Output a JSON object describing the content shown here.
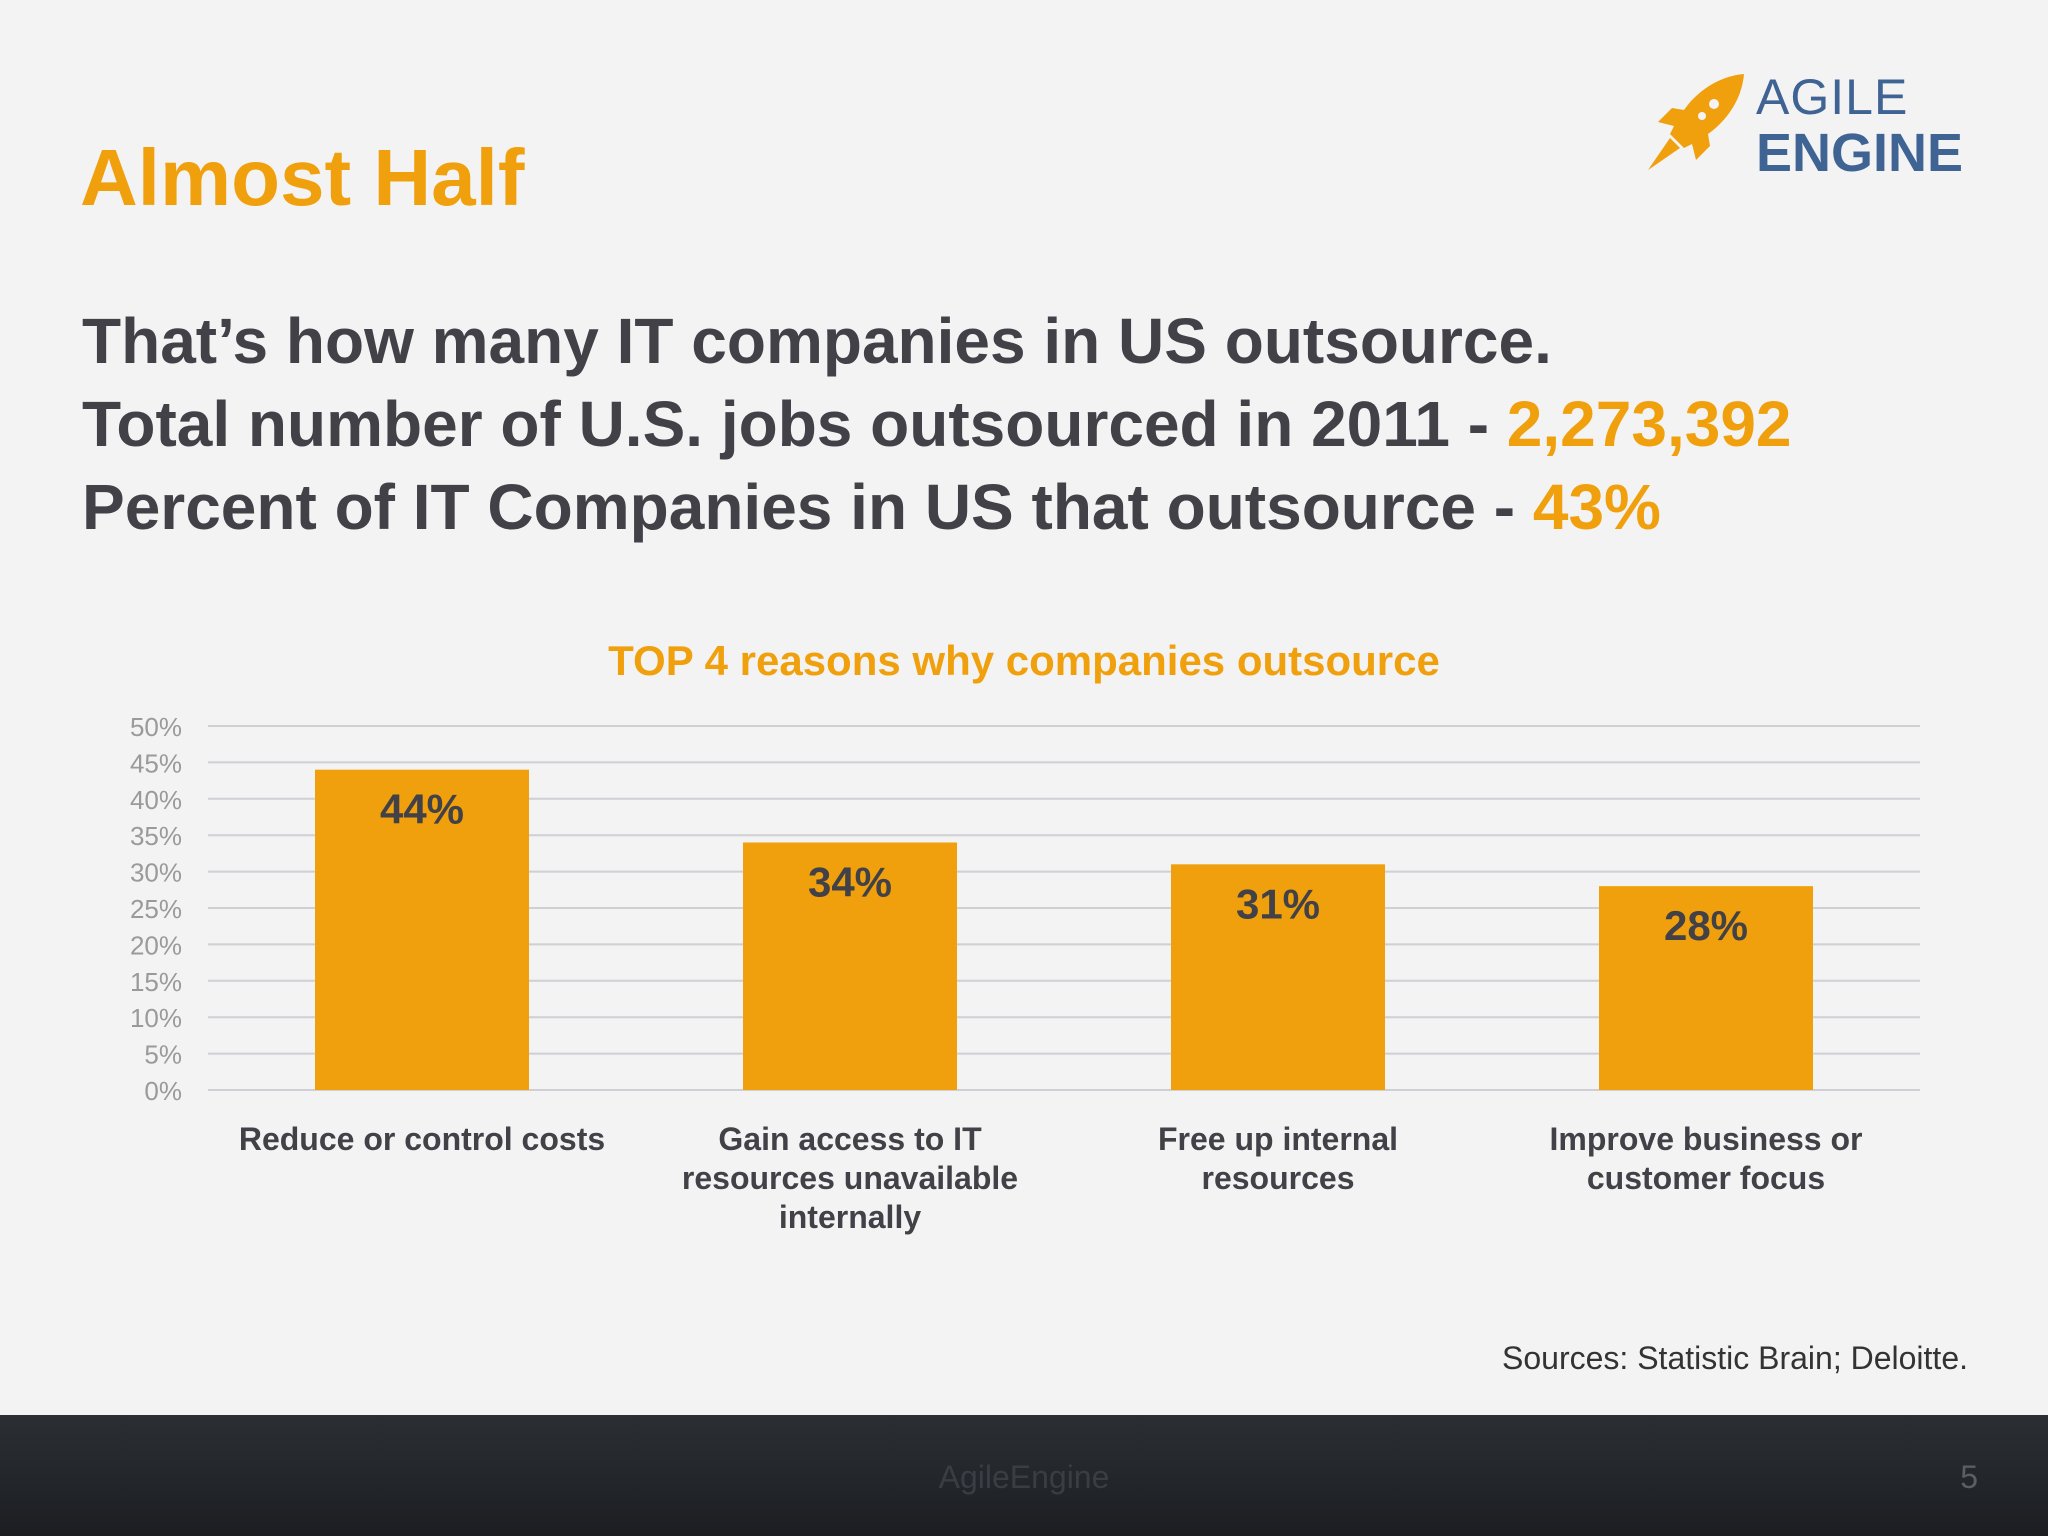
{
  "slide": {
    "title": "Almost Half",
    "stats": [
      {
        "text": "That’s how many IT companies in US outsource.",
        "highlight": ""
      },
      {
        "text": "Total number of U.S. jobs outsourced in 2011 - ",
        "highlight": "2,273,392"
      },
      {
        "text": "Percent of IT Companies in US that outsource - ",
        "highlight": "43%"
      }
    ],
    "source": "Sources: Statistic Brain; Deloitte.",
    "footer_brand": "AgileEngine",
    "page_number": "5"
  },
  "logo": {
    "line1": "AGILE",
    "line2": "ENGINE",
    "icon": "rocket-icon"
  },
  "colors": {
    "accent": "#f0a00c",
    "text": "#414147",
    "logo_blue": "#3f6494",
    "axis_text": "#9a9a9a",
    "grid": "#cfcfd4"
  },
  "chart_data": {
    "type": "bar",
    "title": "TOP 4 reasons why companies outsource",
    "categories": [
      [
        "Reduce or control costs"
      ],
      [
        "Gain access to IT",
        "resources unavailable",
        "internally"
      ],
      [
        "Free up internal",
        "resources"
      ],
      [
        "Improve business or",
        "customer focus"
      ]
    ],
    "values": [
      44,
      34,
      31,
      28
    ],
    "data_labels": [
      "44%",
      "34%",
      "31%",
      "28%"
    ],
    "ylim": [
      0,
      50
    ],
    "yticks": [
      0,
      5,
      10,
      15,
      20,
      25,
      30,
      35,
      40,
      45,
      50
    ],
    "ytick_labels": [
      "0%",
      "5%",
      "10%",
      "15%",
      "20%",
      "25%",
      "30%",
      "35%",
      "40%",
      "45%",
      "50%"
    ],
    "grid": true,
    "legend": false
  }
}
